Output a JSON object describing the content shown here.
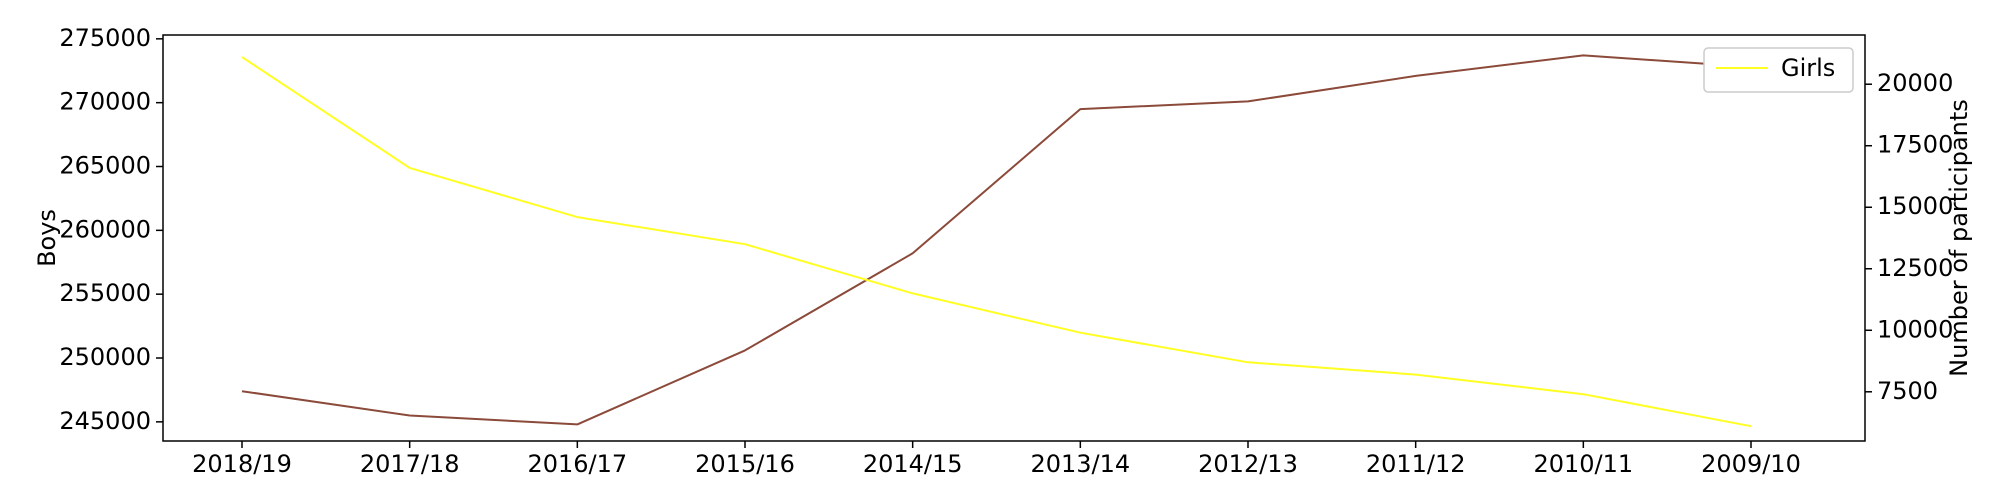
{
  "chart_data": {
    "type": "line",
    "categories": [
      "2018/19",
      "2017/18",
      "2016/17",
      "2015/16",
      "2014/15",
      "2013/14",
      "2012/13",
      "2011/12",
      "2010/11",
      "2009/10"
    ],
    "series": [
      {
        "name": "Boys",
        "axis": "left",
        "color": "#8B4A3A",
        "values": [
          247400,
          245500,
          244800,
          250600,
          258200,
          269500,
          270100,
          272100,
          273700,
          272800
        ]
      },
      {
        "name": "Girls",
        "axis": "right",
        "color": "#FFFF22",
        "values": [
          21100,
          16600,
          14600,
          13500,
          11500,
          9900,
          8700,
          8200,
          7400,
          6100
        ]
      }
    ],
    "left_axis": {
      "label": "Boys",
      "ylim": [
        243500,
        275300
      ],
      "ticks": [
        245000,
        250000,
        255000,
        260000,
        265000,
        270000,
        275000
      ]
    },
    "right_axis": {
      "label": "Number of participants",
      "ylim": [
        5500,
        22000
      ],
      "ticks": [
        7500,
        10000,
        12500,
        15000,
        17500,
        20000
      ]
    },
    "legend": {
      "position": "top-right",
      "entries": [
        {
          "label": "Girls",
          "color": "#FFFF22"
        }
      ]
    },
    "grid": false
  }
}
